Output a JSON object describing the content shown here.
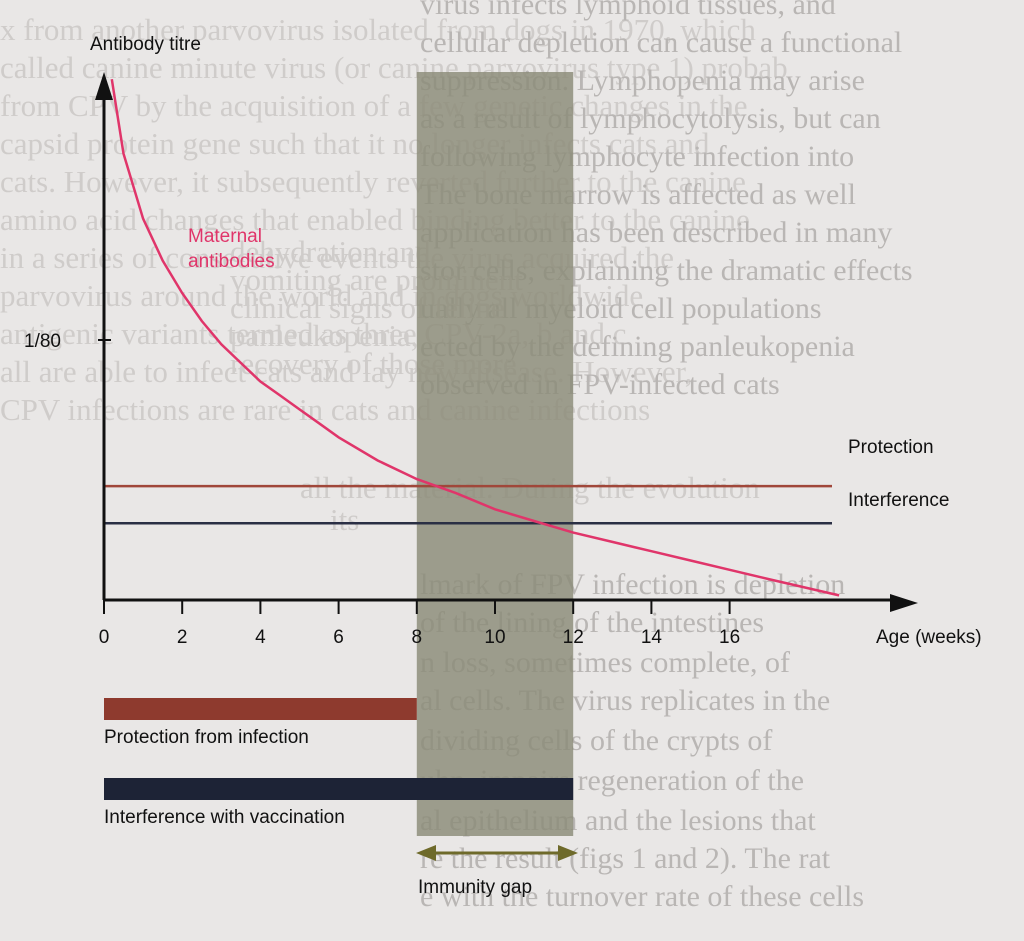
{
  "chart_data": {
    "type": "line",
    "ylabel": "Antibody titre",
    "xlabel": "Age (weeks)",
    "xlim": [
      0,
      19
    ],
    "ylim": [
      0,
      1.21
    ],
    "x_ticks": [
      0,
      2,
      4,
      6,
      8,
      10,
      12,
      14,
      16
    ],
    "y_tick_label": "1/80",
    "y_tick_value": 0.56,
    "series": [
      {
        "name": "Maternal antibodies",
        "color": "#e0356a",
        "x": [
          0.2,
          0.5,
          1,
          1.5,
          2,
          2.5,
          3,
          3.5,
          4,
          4.5,
          5,
          5.5,
          6,
          7,
          8,
          9,
          10,
          11,
          12,
          13,
          14,
          15,
          16,
          17,
          18.8
        ],
        "y": [
          1.12,
          0.96,
          0.82,
          0.73,
          0.66,
          0.6,
          0.55,
          0.51,
          0.47,
          0.44,
          0.41,
          0.38,
          0.35,
          0.3,
          0.26,
          0.23,
          0.195,
          0.17,
          0.145,
          0.125,
          0.105,
          0.085,
          0.065,
          0.045,
          0.01
        ]
      }
    ],
    "thresholds": [
      {
        "name": "Protection",
        "value": 0.245,
        "color": "#a0473a"
      },
      {
        "name": "Interference",
        "value": 0.165,
        "color": "#2a2f44"
      }
    ],
    "shaded_region": {
      "label": "Immunity gap",
      "x_start": 8,
      "x_end": 12,
      "color": "#8b8b78"
    },
    "bars": [
      {
        "label": "Protection from infection",
        "x_start": 0,
        "x_end": 8,
        "color": "#8e3a2e"
      },
      {
        "label": "Interference with vaccination",
        "x_start": 0,
        "x_end": 12,
        "color": "#1d2336"
      }
    ],
    "series_label_lines": [
      "Maternal",
      "antibodies"
    ]
  },
  "background": {
    "page_color": "#e9e7e6",
    "lines": [
      "x from another parvovirus isolated from dogs in 1970, which",
      "called canine minute virus (or canine parvovirus type 1) probab",
      "from CPV by the acquisition of a few genetic changes in the",
      "capsid protein gene such that it no longer infects cats and",
      "cats. However, it subsequently reverted further to the canine",
      "amino acid changes that enabled binding better to the canine",
      "in a series of consecutive events the virus acquired the",
      "parvovirus around the world and in dogs worldwide",
      "antigenic variants termed as three CPV-2a, b and c",
      "all are able to infect cats and lay new disease. However,",
      "CPV infections are rare in cats and canine infections",
      "all the material. During the evolution",
      "its",
      "virus infects lymphoid tissues, and",
      "cellular depletion can cause a functional",
      "suppression. Lymphopenia may arise",
      "as a result of lymphocytolysis, but can",
      "following lymphocyte infection into",
      "The bone marrow is affected as well",
      "application has been described in many",
      "stor cells, explaining the dramatic effects",
      "ually all myeloid cell populations",
      "ected by the defining panleukopenia",
      "observed in FPV-infected cats",
      "lmark of FPV infection is depletion",
      "of the lining of the intestines",
      "n loss, sometimes complete, of",
      "al cells. The virus replicates in the",
      "dividing cells of the crypts of",
      "uhn, impairs regeneration of the",
      "al epithelium and the lesions that",
      "re the result (figs 1 and 2). The rat",
      "e with the turnover rate of these cells",
      "dehydration and",
      "vomiting are prominent",
      "clinical signs of feline",
      "panleukopenia,",
      "recovery of those more"
    ]
  }
}
